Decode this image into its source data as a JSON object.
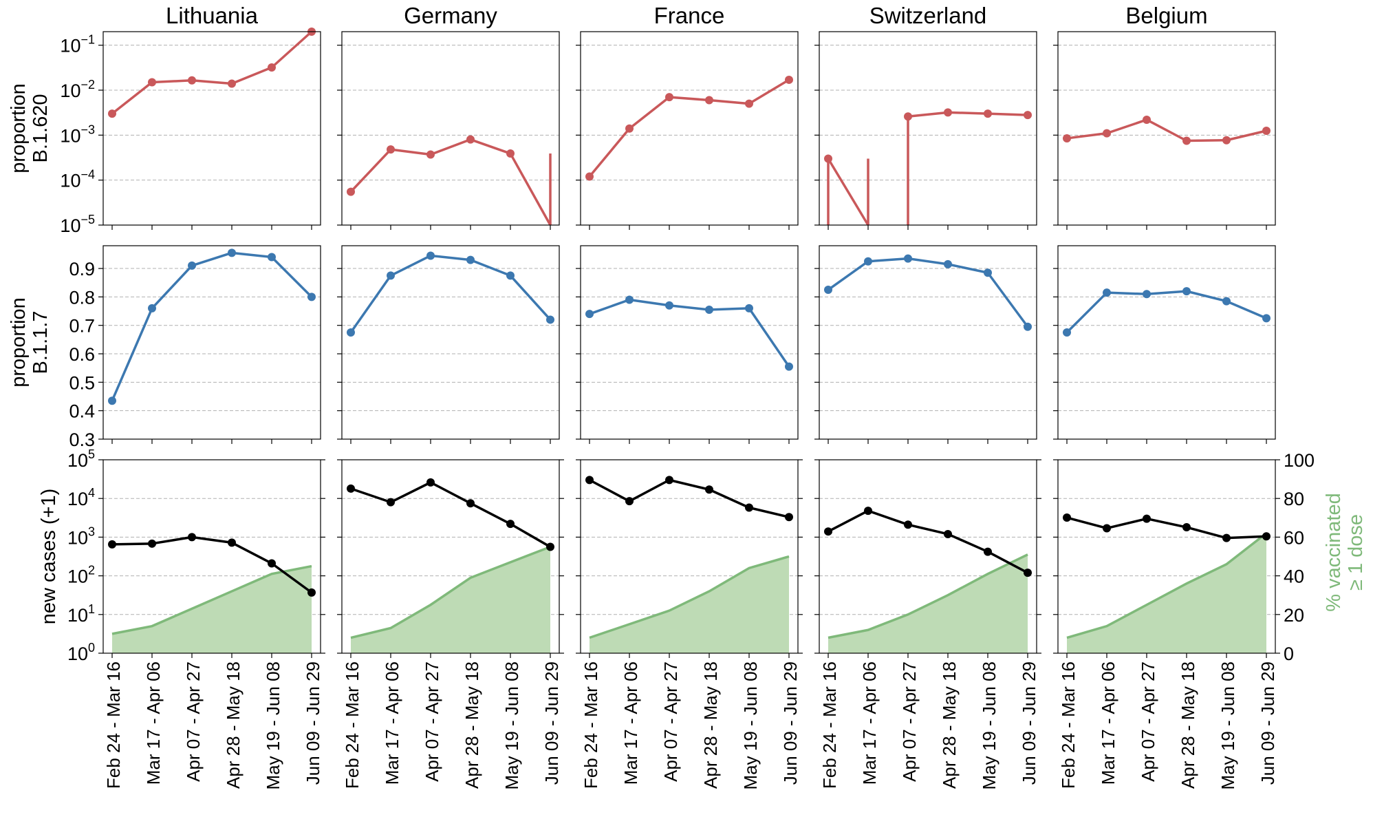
{
  "chart_data": {
    "type": "line",
    "panels_layout": "3 rows x 5 columns",
    "countries": [
      "Lithuania",
      "Germany",
      "France",
      "Switzerland",
      "Belgium"
    ],
    "categories": [
      "Feb 24 - Mar 16",
      "Mar 17 - Apr 06",
      "Apr 07 - Apr 27",
      "Apr 28 - May 18",
      "May 19 - Jun 08",
      "Jun 09 - Jun 29"
    ],
    "rows": [
      {
        "id": "b1620",
        "ylabel": [
          "proportion",
          "B.1.620"
        ],
        "scale": "log",
        "ylim": [
          1e-05,
          0.2
        ],
        "ticks": [
          {
            "value": 1e-05,
            "base": "10",
            "exp": "−5"
          },
          {
            "value": 0.0001,
            "base": "10",
            "exp": "−4"
          },
          {
            "value": 0.001,
            "base": "10",
            "exp": "−3"
          },
          {
            "value": 0.01,
            "base": "10",
            "exp": "−2"
          },
          {
            "value": 0.1,
            "base": "10",
            "exp": "−1"
          }
        ],
        "color": "#c9585a",
        "series": [
          {
            "country": "Lithuania",
            "values": [
              0.003,
              0.015,
              0.0165,
              0.014,
              0.032,
              0.2
            ]
          },
          {
            "country": "Germany",
            "values": [
              5.5e-05,
              0.00048,
              0.00037,
              0.0008,
              0.00039,
              0
            ]
          },
          {
            "country": "France",
            "values": [
              0.00012,
              0.0014,
              0.007,
              0.006,
              0.005,
              0.017
            ]
          },
          {
            "country": "Switzerland",
            "values": [
              0.0003,
              0,
              0.0026,
              0.0032,
              0.003,
              0.0028
            ]
          },
          {
            "country": "Belgium",
            "values": [
              0.00085,
              0.0011,
              0.0022,
              0.00075,
              0.00077,
              0.00125
            ]
          }
        ]
      },
      {
        "id": "b117",
        "ylabel": [
          "proportion",
          "B.1.1.7"
        ],
        "scale": "linear",
        "ylim": [
          0.3,
          0.98
        ],
        "ticks": [
          {
            "value": 0.3,
            "label": "0.3"
          },
          {
            "value": 0.4,
            "label": "0.4"
          },
          {
            "value": 0.5,
            "label": "0.5"
          },
          {
            "value": 0.6,
            "label": "0.6"
          },
          {
            "value": 0.7,
            "label": "0.7"
          },
          {
            "value": 0.8,
            "label": "0.8"
          },
          {
            "value": 0.9,
            "label": "0.9"
          }
        ],
        "color": "#3c78b0",
        "series": [
          {
            "country": "Lithuania",
            "values": [
              0.435,
              0.76,
              0.91,
              0.955,
              0.94,
              0.8
            ]
          },
          {
            "country": "Germany",
            "values": [
              0.675,
              0.875,
              0.945,
              0.93,
              0.875,
              0.72
            ]
          },
          {
            "country": "France",
            "values": [
              0.74,
              0.79,
              0.77,
              0.755,
              0.76,
              0.555
            ]
          },
          {
            "country": "Switzerland",
            "values": [
              0.825,
              0.925,
              0.935,
              0.915,
              0.885,
              0.695
            ]
          },
          {
            "country": "Belgium",
            "values": [
              0.675,
              0.815,
              0.81,
              0.82,
              0.785,
              0.725
            ]
          }
        ]
      },
      {
        "id": "cases",
        "ylabel": [
          "new cases (+1)"
        ],
        "scale": "log",
        "ylim": [
          1,
          100000
        ],
        "ticks": [
          {
            "value": 1,
            "base": "10",
            "exp": "0"
          },
          {
            "value": 10,
            "base": "10",
            "exp": "1"
          },
          {
            "value": 100,
            "base": "10",
            "exp": "2"
          },
          {
            "value": 1000,
            "base": "10",
            "exp": "3"
          },
          {
            "value": 10000,
            "base": "10",
            "exp": "4"
          },
          {
            "value": 100000,
            "base": "10",
            "exp": "5"
          }
        ],
        "color": "#000000",
        "right_axis": {
          "ylabel": [
            "% vaccinated",
            "≥ 1 dose"
          ],
          "ylim": [
            0,
            100
          ],
          "ticks": [
            "0",
            "20",
            "40",
            "60",
            "80",
            "100"
          ],
          "color": "#7fb97a",
          "fill": "#bedbb5"
        },
        "series": [
          {
            "country": "Lithuania",
            "values": [
              650,
              680,
              1000,
              720,
              210,
              37
            ],
            "vaccinated": [
              10,
              14,
              23,
              32,
              41,
              45
            ]
          },
          {
            "country": "Germany",
            "values": [
              18000,
              8000,
              26000,
              7500,
              2200,
              560
            ],
            "vaccinated": [
              8,
              13,
              25,
              39,
              47,
              55
            ]
          },
          {
            "country": "France",
            "values": [
              30000,
              8500,
              30000,
              17000,
              5800,
              3300
            ],
            "vaccinated": [
              8,
              15,
              22,
              32,
              44,
              50
            ]
          },
          {
            "country": "Switzerland",
            "values": [
              1400,
              4800,
              2100,
              1200,
              420,
              120
            ],
            "vaccinated": [
              8,
              12,
              20,
              30,
              41,
              51
            ]
          },
          {
            "country": "Belgium",
            "values": [
              3200,
              1700,
              3000,
              1800,
              950,
              1050
            ],
            "vaccinated": [
              8,
              14,
              25,
              36,
              46,
              62
            ]
          }
        ]
      }
    ]
  }
}
